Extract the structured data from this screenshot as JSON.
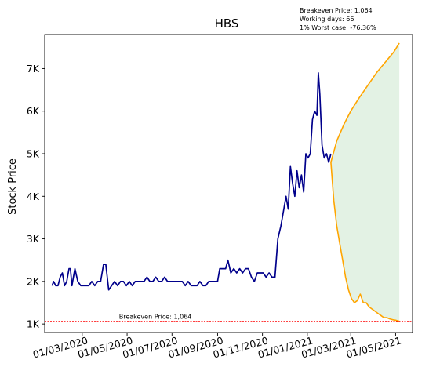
{
  "chart_data": {
    "type": "line",
    "title": "HBS",
    "ylabel": "Stock Price",
    "xlabel": "",
    "xlim": [
      "2020-01-10",
      "2021-05-24"
    ],
    "ylim": [
      800,
      7800
    ],
    "yticks": [
      1000,
      2000,
      3000,
      4000,
      5000,
      6000,
      7000
    ],
    "ytick_labels": [
      "1K",
      "2K",
      "3K",
      "4K",
      "5K",
      "6K",
      "7K"
    ],
    "xticks": [
      "2020-03-01",
      "2020-05-01",
      "2020-07-01",
      "2020-09-01",
      "2020-11-01",
      "2021-01-01",
      "2021-03-01",
      "2021-05-01"
    ],
    "xtick_labels": [
      "01/03/2020",
      "01/05/2020",
      "01/07/2020",
      "01/09/2020",
      "01/11/2020",
      "01/01/2021",
      "01/03/2021",
      "01/05/2021"
    ],
    "breakeven": {
      "value": 1064,
      "label": "Breakeven Price: 1,064",
      "color": "#ff0000"
    },
    "info_lines": [
      "Breakeven Price: 1,064",
      "Working days: 66",
      "1% Worst case: -76.36%"
    ],
    "colors": {
      "history": "#00008b",
      "upper": "#ffa500",
      "lower": "#ffa500",
      "band": "#c8e6c9"
    },
    "series": [
      {
        "role": "history",
        "x": [
          "2020-01-20",
          "2020-01-22",
          "2020-01-25",
          "2020-01-28",
          "2020-01-31",
          "2020-02-03",
          "2020-02-06",
          "2020-02-09",
          "2020-02-12",
          "2020-02-14",
          "2020-02-16",
          "2020-02-20",
          "2020-02-24",
          "2020-02-28",
          "2020-03-03",
          "2020-03-06",
          "2020-03-10",
          "2020-03-14",
          "2020-03-18",
          "2020-03-22",
          "2020-03-26",
          "2020-03-30",
          "2020-04-02",
          "2020-04-06",
          "2020-04-10",
          "2020-04-14",
          "2020-04-18",
          "2020-04-22",
          "2020-04-26",
          "2020-04-30",
          "2020-05-04",
          "2020-05-08",
          "2020-05-12",
          "2020-05-16",
          "2020-05-20",
          "2020-05-24",
          "2020-05-28",
          "2020-06-01",
          "2020-06-05",
          "2020-06-09",
          "2020-06-13",
          "2020-06-17",
          "2020-06-21",
          "2020-06-25",
          "2020-06-29",
          "2020-07-03",
          "2020-07-07",
          "2020-07-11",
          "2020-07-15",
          "2020-07-19",
          "2020-07-23",
          "2020-07-27",
          "2020-07-31",
          "2020-08-04",
          "2020-08-08",
          "2020-08-12",
          "2020-08-16",
          "2020-08-20",
          "2020-08-24",
          "2020-08-28",
          "2020-09-01",
          "2020-09-04",
          "2020-09-08",
          "2020-09-12",
          "2020-09-15",
          "2020-09-19",
          "2020-09-23",
          "2020-09-27",
          "2020-10-01",
          "2020-10-05",
          "2020-10-09",
          "2020-10-13",
          "2020-10-17",
          "2020-10-21",
          "2020-10-25",
          "2020-10-29",
          "2020-11-02",
          "2020-11-06",
          "2020-11-10",
          "2020-11-14",
          "2020-11-18",
          "2020-11-22",
          "2020-11-26",
          "2020-11-30",
          "2020-12-03",
          "2020-12-06",
          "2020-12-09",
          "2020-12-12",
          "2020-12-15",
          "2020-12-18",
          "2020-12-21",
          "2020-12-24",
          "2020-12-27",
          "2020-12-30",
          "2021-01-02",
          "2021-01-05",
          "2021-01-08",
          "2021-01-11",
          "2021-01-14",
          "2021-01-16",
          "2021-01-18",
          "2021-01-21",
          "2021-01-24",
          "2021-01-27",
          "2021-01-30",
          "2021-02-02"
        ],
        "y": [
          1900,
          2000,
          1900,
          1900,
          2100,
          2200,
          1900,
          2000,
          2300,
          2300,
          1900,
          2300,
          2000,
          1900,
          1900,
          1900,
          1900,
          2000,
          1900,
          2000,
          2000,
          2400,
          2400,
          1800,
          1900,
          2000,
          1900,
          2000,
          2000,
          1900,
          2000,
          1900,
          2000,
          2000,
          2000,
          2000,
          2100,
          2000,
          2000,
          2100,
          2000,
          2000,
          2100,
          2000,
          2000,
          2000,
          2000,
          2000,
          2000,
          1900,
          2000,
          1900,
          1900,
          1900,
          2000,
          1900,
          1900,
          2000,
          2000,
          2000,
          2000,
          2300,
          2300,
          2300,
          2500,
          2200,
          2300,
          2200,
          2300,
          2200,
          2300,
          2300,
          2100,
          2000,
          2200,
          2200,
          2200,
          2100,
          2200,
          2100,
          2100,
          3000,
          3300,
          3700,
          4000,
          3700,
          4700,
          4300,
          4000,
          4600,
          4200,
          4500,
          4100,
          5000,
          4900,
          5000,
          5800,
          6000,
          5900,
          6900,
          6400,
          5200,
          4900,
          5000,
          4800,
          5000
        ]
      },
      {
        "role": "upper",
        "x": [
          "2021-02-02",
          "2021-02-10",
          "2021-02-20",
          "2021-03-01",
          "2021-03-12",
          "2021-03-24",
          "2021-04-05",
          "2021-04-17",
          "2021-04-29",
          "2021-05-06"
        ],
        "y": [
          4800,
          5300,
          5700,
          6000,
          6300,
          6600,
          6900,
          7150,
          7400,
          7600
        ]
      },
      {
        "role": "lower",
        "x": [
          "2021-02-02",
          "2021-02-06",
          "2021-02-10",
          "2021-02-14",
          "2021-02-18",
          "2021-02-22",
          "2021-02-26",
          "2021-03-02",
          "2021-03-06",
          "2021-03-10",
          "2021-03-14",
          "2021-03-18",
          "2021-03-22",
          "2021-03-26",
          "2021-03-30",
          "2021-04-03",
          "2021-04-07",
          "2021-04-11",
          "2021-04-15",
          "2021-04-19",
          "2021-04-23",
          "2021-04-27",
          "2021-05-01",
          "2021-05-06"
        ],
        "y": [
          4800,
          3900,
          3300,
          2900,
          2500,
          2100,
          1800,
          1600,
          1500,
          1550,
          1700,
          1500,
          1500,
          1400,
          1350,
          1300,
          1250,
          1200,
          1150,
          1150,
          1120,
          1100,
          1090,
          1064
        ]
      }
    ]
  }
}
